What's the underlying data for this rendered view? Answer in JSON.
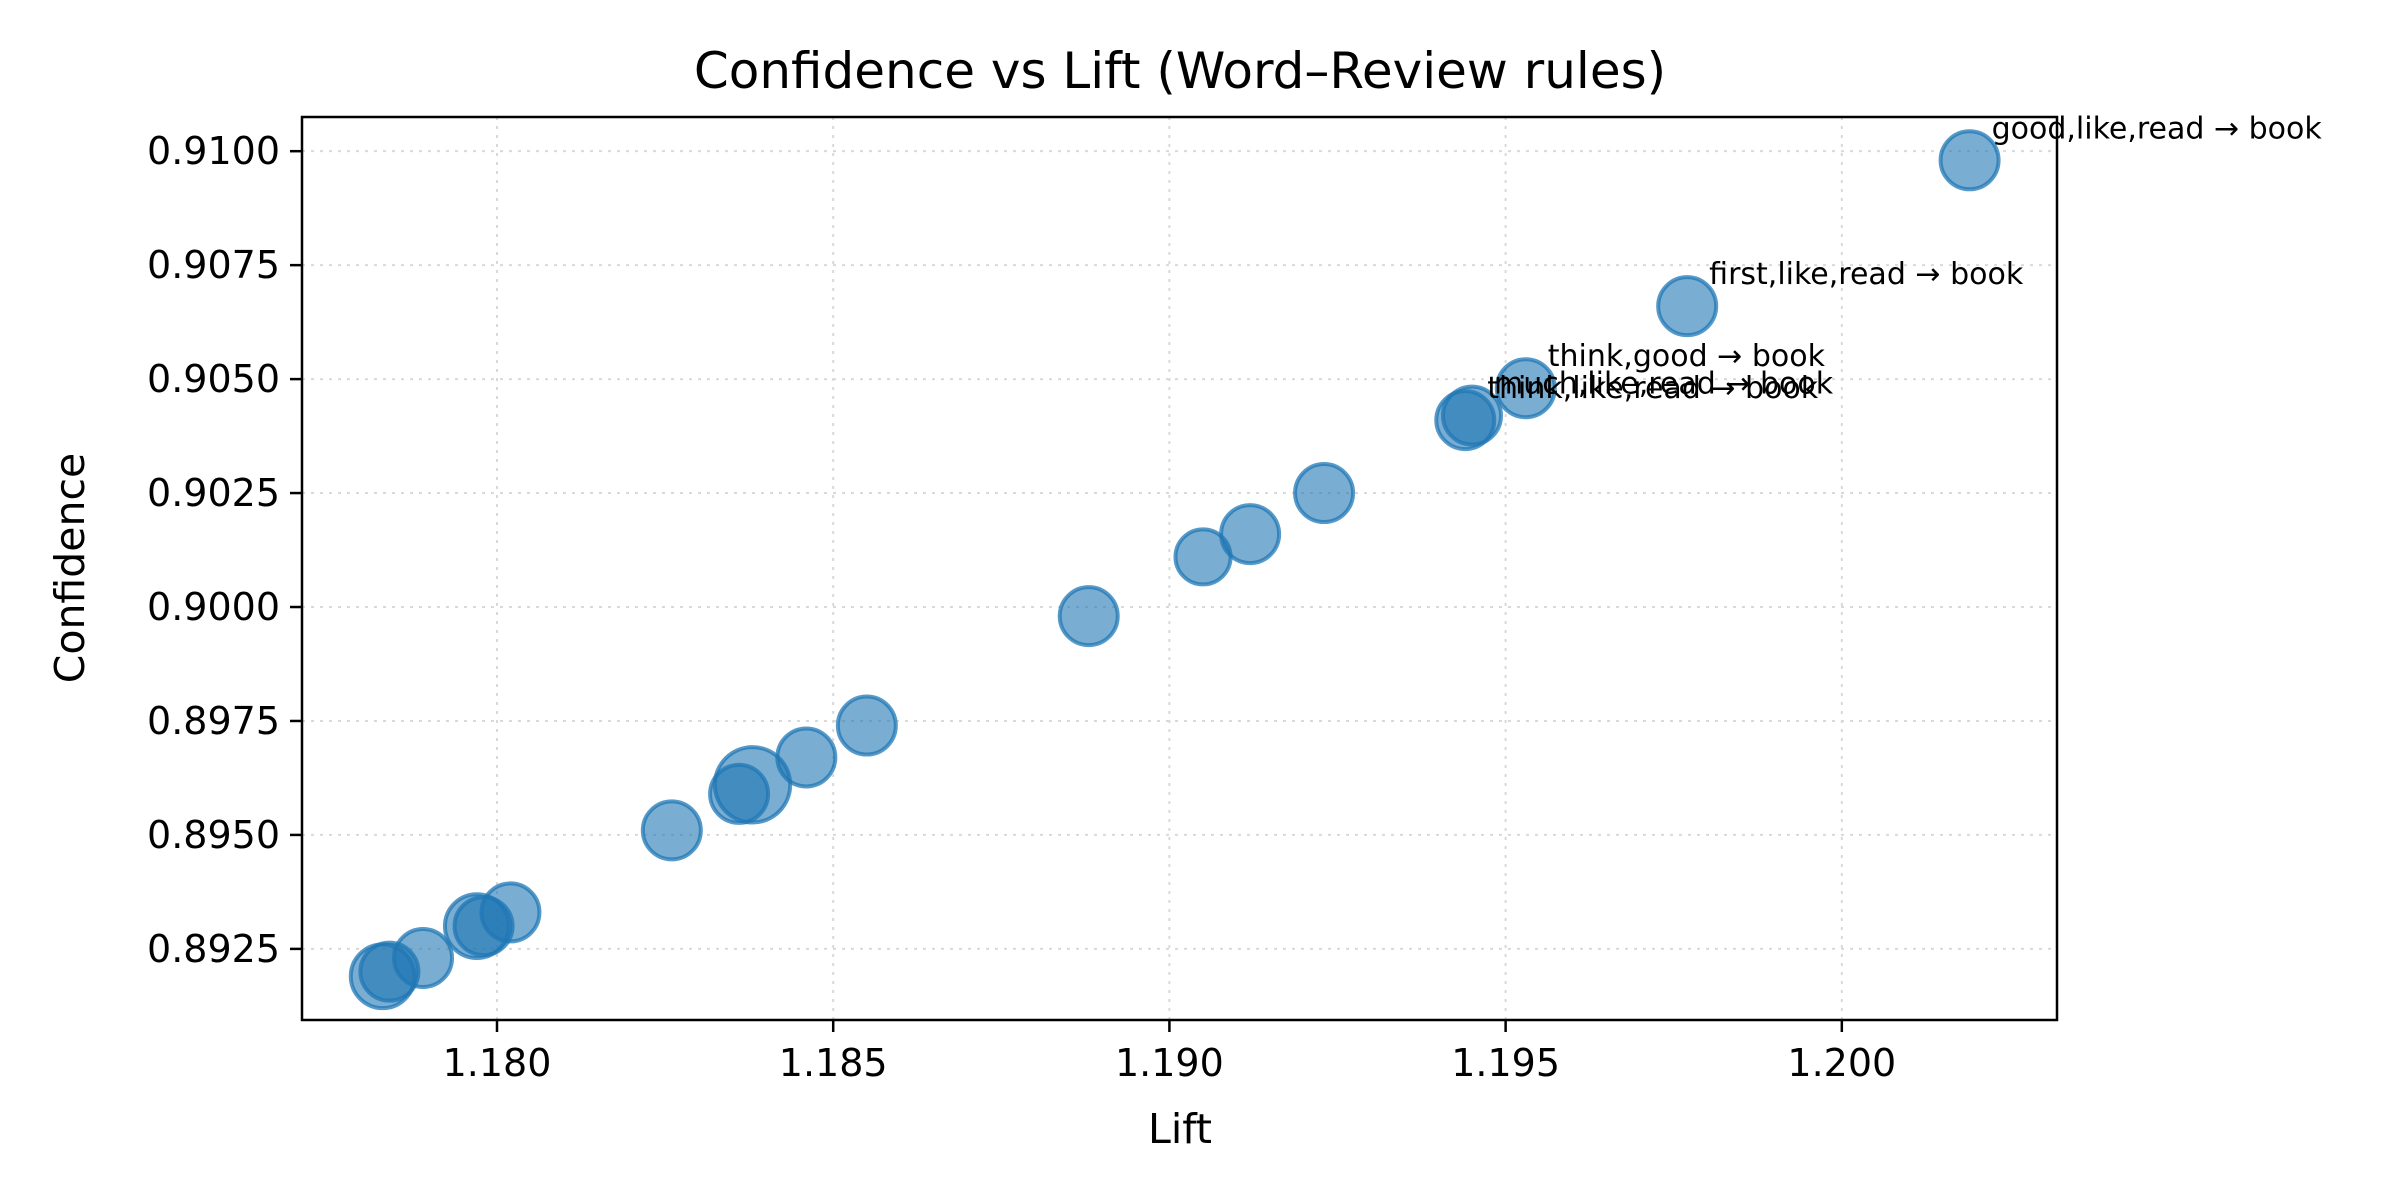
{
  "chart_data": {
    "type": "scatter",
    "title": "Confidence vs Lift (Word–Review rules)",
    "xlabel": "Lift",
    "ylabel": "Confidence",
    "xlim": [
      1.1771,
      1.2032
    ],
    "ylim": [
      0.89094,
      0.91075
    ],
    "xticks": [
      1.18,
      1.185,
      1.19,
      1.195,
      1.2
    ],
    "xtick_labels": [
      "1.180",
      "1.185",
      "1.190",
      "1.195",
      "1.200"
    ],
    "yticks": [
      0.8925,
      0.895,
      0.8975,
      0.9,
      0.9025,
      0.905,
      0.9075,
      0.91
    ],
    "ytick_labels": [
      "0.8925",
      "0.8950",
      "0.8975",
      "0.9000",
      "0.9025",
      "0.9050",
      "0.9075",
      "0.9100"
    ],
    "grid": true,
    "marker_color": "#1f77b4",
    "marker_opacity": 0.6,
    "points": [
      {
        "x": 1.2019,
        "y": 0.9098,
        "size": 1.0
      },
      {
        "x": 1.1977,
        "y": 0.9066,
        "size": 1.0
      },
      {
        "x": 1.1953,
        "y": 0.9048,
        "size": 1.0
      },
      {
        "x": 1.1944,
        "y": 0.9041,
        "size": 1.0
      },
      {
        "x": 1.1945,
        "y": 0.9042,
        "size": 1.0
      },
      {
        "x": 1.1923,
        "y": 0.9025,
        "size": 1.0
      },
      {
        "x": 1.1912,
        "y": 0.9016,
        "size": 1.0
      },
      {
        "x": 1.1905,
        "y": 0.9011,
        "size": 0.95
      },
      {
        "x": 1.1888,
        "y": 0.8998,
        "size": 1.0
      },
      {
        "x": 1.1855,
        "y": 0.8974,
        "size": 1.0
      },
      {
        "x": 1.1846,
        "y": 0.8967,
        "size": 1.0
      },
      {
        "x": 1.1838,
        "y": 0.8961,
        "size": 1.3
      },
      {
        "x": 1.1836,
        "y": 0.8959,
        "size": 1.0
      },
      {
        "x": 1.1826,
        "y": 0.8951,
        "size": 1.0
      },
      {
        "x": 1.1802,
        "y": 0.8933,
        "size": 1.0
      },
      {
        "x": 1.1797,
        "y": 0.893,
        "size": 1.1
      },
      {
        "x": 1.1798,
        "y": 0.893,
        "size": 1.0
      },
      {
        "x": 1.1789,
        "y": 0.8923,
        "size": 1.0
      },
      {
        "x": 1.1784,
        "y": 0.892,
        "size": 1.0
      },
      {
        "x": 1.1783,
        "y": 0.8919,
        "size": 1.1
      }
    ],
    "annotations": [
      {
        "text": "good,like,read → book",
        "x": 1.2019,
        "y": 0.9098
      },
      {
        "text": "first,like,read → book",
        "x": 1.1977,
        "y": 0.9066
      },
      {
        "text": "think,good → book",
        "x": 1.1953,
        "y": 0.9048
      },
      {
        "text": "think,like,read → book",
        "x": 1.1944,
        "y": 0.9041
      },
      {
        "text": "much,like,read → book",
        "x": 1.1945,
        "y": 0.9042
      }
    ]
  }
}
